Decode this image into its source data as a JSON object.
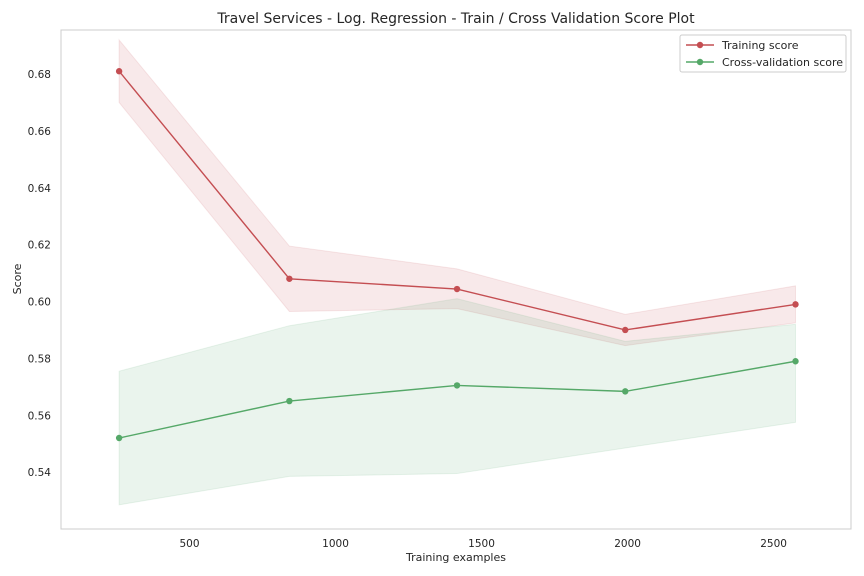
{
  "chart_data": {
    "type": "line",
    "title": "Travel Services - Log. Regression - Train / Cross Validation Score Plot",
    "xlabel": "Training examples",
    "ylabel": "Score",
    "x": [
      259,
      842,
      1416,
      1992,
      2575
    ],
    "xlim": [
      60,
      2765
    ],
    "ylim": [
      0.52,
      0.6955
    ],
    "xticks": [
      500,
      1000,
      1500,
      2000,
      2500
    ],
    "yticks": [
      0.54,
      0.56,
      0.58,
      0.6,
      0.62,
      0.64,
      0.66,
      0.68
    ],
    "ytick_labels": [
      "0.54",
      "0.56",
      "0.58",
      "0.60",
      "0.62",
      "0.64",
      "0.66",
      "0.68"
    ],
    "grid": false,
    "legend_position": "upper right",
    "series": [
      {
        "name": "Training score",
        "color": "#c44e52",
        "values": [
          0.681,
          0.608,
          0.6044,
          0.59,
          0.599
        ],
        "band_upper": [
          0.692,
          0.6195,
          0.6115,
          0.5955,
          0.6055
        ],
        "band_lower": [
          0.67,
          0.5965,
          0.5975,
          0.5845,
          0.5925
        ]
      },
      {
        "name": "Cross-validation score",
        "color": "#55a868",
        "values": [
          0.552,
          0.565,
          0.5705,
          0.5684,
          0.579
        ],
        "band_upper": [
          0.5755,
          0.5915,
          0.601,
          0.586,
          0.592
        ],
        "band_lower": [
          0.5285,
          0.5385,
          0.5395,
          0.5485,
          0.5575
        ]
      }
    ]
  }
}
